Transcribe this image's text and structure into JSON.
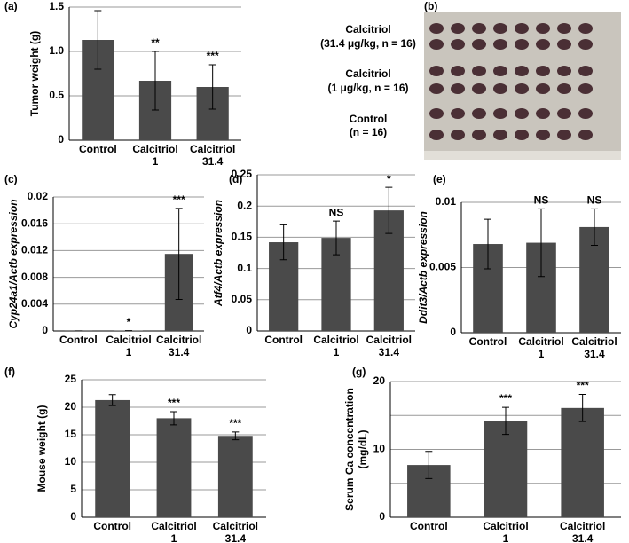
{
  "chart_data": [
    {
      "type": "bar",
      "label": "(a)",
      "ylabel": "Tumor weight (g)",
      "color": "#4a4a4a",
      "grid": true,
      "categories": [
        [
          "Control"
        ],
        [
          "Calcitriol",
          "1"
        ],
        [
          "Calcitriol",
          "31.4"
        ]
      ],
      "values": [
        1.13,
        0.67,
        0.6
      ],
      "errors": [
        0.33,
        0.33,
        0.25
      ],
      "annotations": [
        null,
        "**",
        "***"
      ],
      "ylim": [
        0,
        1.5
      ],
      "yticks": [
        0,
        0.5,
        {
          "value": 1,
          "label": "1.0"
        },
        1.5
      ]
    },
    {
      "type": "bar",
      "label": "(c)",
      "ylabel": "Cyp24a1/Actb expression",
      "color": "#4a4a4a",
      "grid": true,
      "categories": [
        [
          "Control"
        ],
        [
          "Calcitriol",
          "1"
        ],
        [
          "Calcitriol",
          "31.4"
        ]
      ],
      "values": [
        2e-05,
        5e-05,
        0.0115
      ],
      "errors": [
        0,
        0,
        0.0068
      ],
      "annotations": [
        null,
        "*",
        "***"
      ],
      "ylim": [
        0,
        0.02
      ],
      "yticks": [
        0,
        0.004,
        0.008,
        0.012,
        0.016,
        0.02
      ]
    },
    {
      "type": "bar",
      "label": "(d)",
      "ylabel": "Atf4/Actb expression",
      "color": "#4a4a4a",
      "grid": true,
      "categories": [
        [
          "Control"
        ],
        [
          "Calcitriol",
          "1"
        ],
        [
          "Calcitriol",
          "31.4"
        ]
      ],
      "values": [
        0.142,
        0.149,
        0.193
      ],
      "errors": [
        0.028,
        0.027,
        0.037
      ],
      "annotations": [
        null,
        "NS",
        "*"
      ],
      "ylim": [
        0,
        0.25
      ],
      "yticks": [
        0,
        0.05,
        0.1,
        0.15,
        0.2,
        0.25
      ]
    },
    {
      "type": "bar",
      "label": "(e)",
      "ylabel": "Ddit3/Actb expression",
      "color": "#4a4a4a",
      "grid": true,
      "categories": [
        [
          "Control"
        ],
        [
          "Calcitriol",
          "1"
        ],
        [
          "Calcitriol",
          "31.4"
        ]
      ],
      "values": [
        0.0068,
        0.0069,
        0.0081
      ],
      "errors": [
        0.0019,
        0.0026,
        0.0014
      ],
      "annotations": [
        null,
        "NS",
        "NS"
      ],
      "ylim": [
        0,
        0.01
      ],
      "yticks": [
        0,
        0.005,
        0.01
      ]
    },
    {
      "type": "bar",
      "label": "(f)",
      "ylabel": "Mouse weight (g)",
      "color": "#4a4a4a",
      "grid": true,
      "categories": [
        [
          "Control"
        ],
        [
          "Calcitriol",
          "1"
        ],
        [
          "Calcitriol",
          "31.4"
        ]
      ],
      "values": [
        21.3,
        18.0,
        14.8
      ],
      "errors": [
        1.0,
        1.2,
        0.7
      ],
      "annotations": [
        null,
        "***",
        "***"
      ],
      "ylim": [
        0,
        25
      ],
      "yticks": [
        0,
        5,
        10,
        15,
        20,
        25
      ]
    },
    {
      "type": "bar",
      "label": "(g)",
      "ylabel": [
        "Serum Ca concentration",
        "(mg/dL)"
      ],
      "color": "#4a4a4a",
      "grid": true,
      "categories": [
        [
          "Control"
        ],
        [
          "Calcitriol",
          "1"
        ],
        [
          "Calcitriol",
          "31.4"
        ]
      ],
      "values": [
        7.7,
        14.2,
        16.1
      ],
      "errors": [
        2.0,
        2.0,
        2.0
      ],
      "annotations": [
        null,
        "***",
        "***"
      ],
      "ylim": [
        0,
        20
      ],
      "yticks": [
        0,
        10,
        20
      ],
      "minor_yticks": [
        5,
        15
      ]
    }
  ],
  "photo_panel": {
    "label": "(b)",
    "groups": [
      [
        "Calcitriol",
        "(31.4 μg/kg, n = 16)"
      ],
      [
        "Calcitriol",
        "(1 μg/kg, n = 16)"
      ],
      [
        "Control",
        "(n = 16)"
      ]
    ]
  }
}
